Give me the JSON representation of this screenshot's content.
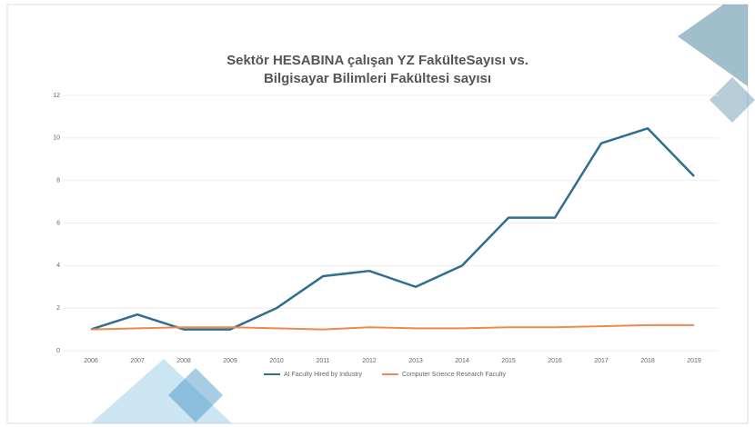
{
  "chart_data": {
    "type": "line",
    "title": [
      "Sektör HESABINA çalışan YZ FakülteSayısı vs.",
      "Bilgisayar Bilimleri Fakültesi sayısı"
    ],
    "categories": [
      "2006",
      "2007",
      "2008",
      "2009",
      "2010",
      "2011",
      "2012",
      "2013",
      "2014",
      "2015",
      "2016",
      "2017",
      "2018",
      "2019"
    ],
    "series": [
      {
        "name": "AI Faculty Hired by Industry",
        "color": "#2f6e8f",
        "values": [
          1.0,
          1.7,
          1.0,
          1.0,
          2.0,
          3.5,
          3.75,
          3.0,
          4.0,
          6.25,
          6.25,
          9.75,
          10.45,
          8.2
        ]
      },
      {
        "name": "Computer Science Research Faculty",
        "color": "#ed8a4f",
        "values": [
          1.0,
          1.05,
          1.1,
          1.1,
          1.05,
          1.0,
          1.1,
          1.05,
          1.05,
          1.1,
          1.1,
          1.15,
          1.2,
          1.2
        ]
      }
    ],
    "ylim": [
      0,
      12
    ],
    "yticks": [
      0,
      2,
      4,
      6,
      8,
      10,
      12
    ],
    "grid": true
  }
}
